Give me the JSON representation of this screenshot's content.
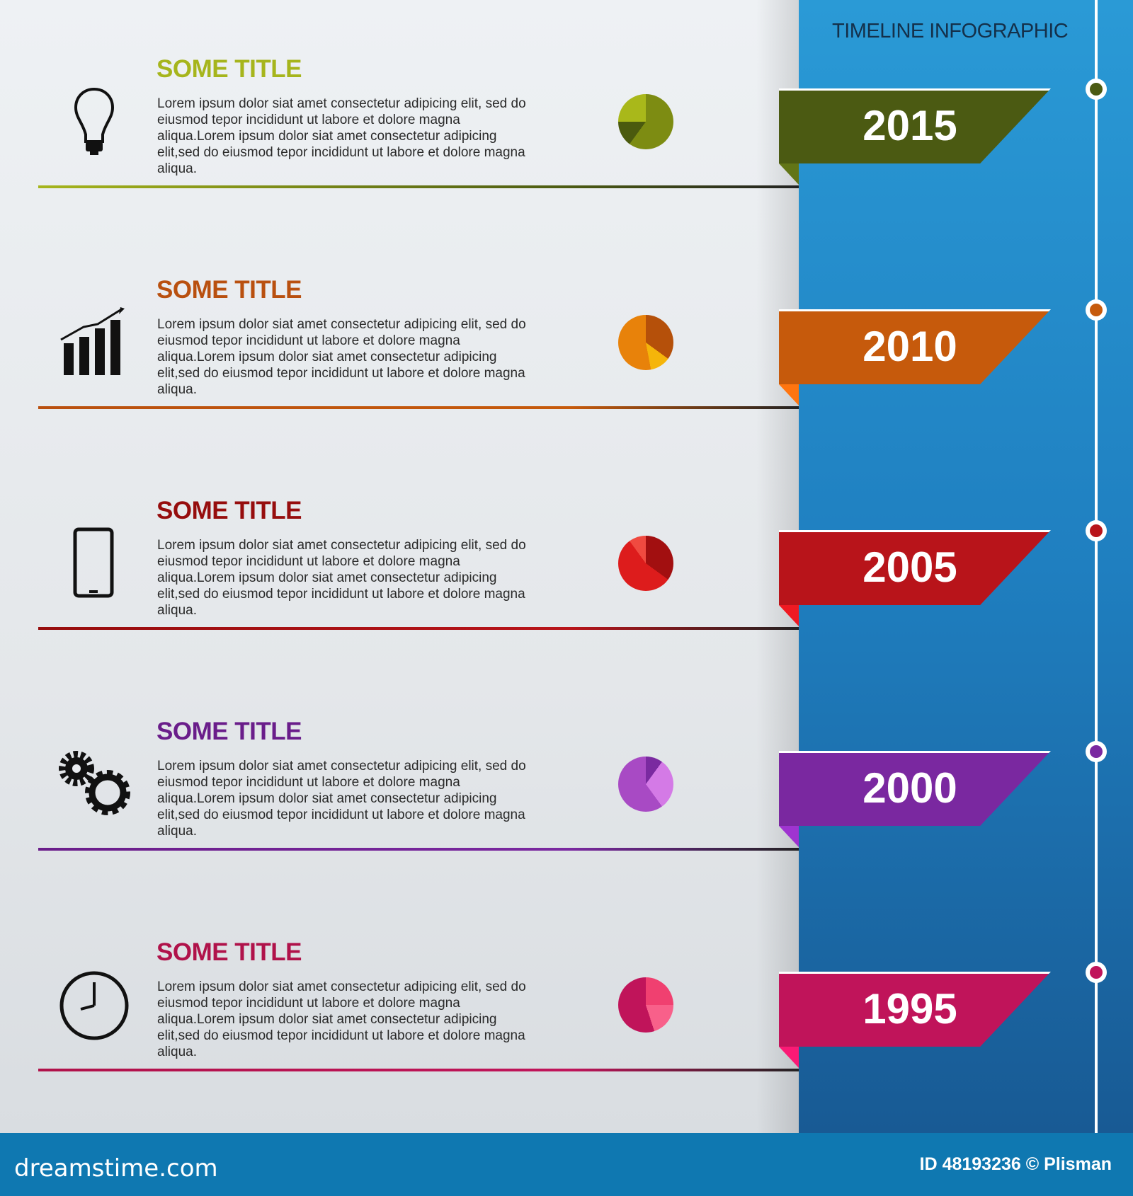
{
  "header": {
    "title": "TIMELINE INFOGRAPHIC"
  },
  "items": [
    {
      "year": "2015",
      "title": "SOME TITLE",
      "text": "Lorem ipsum dolor siat amet consectetur adipicing elit, sed do eiusmod tepor incididunt ut labore et dolore magna aliqua.Lorem ipsum dolor siat amet consectetur adipicing elit,sed do eiusmod tepor incididunt ut labore et dolore magna aliqua.",
      "icon": "lightbulb-icon",
      "title_color": "#a6b51c",
      "ribbon_color": "#4b5a12",
      "pie": [
        [
          "#7d8c12",
          60
        ],
        [
          "#4b5a0e",
          15
        ],
        [
          "#a9b81a",
          25
        ]
      ]
    },
    {
      "year": "2010",
      "title": "SOME TITLE",
      "text": "Lorem ipsum dolor siat amet consectetur adipicing elit, sed do eiusmod tepor incididunt ut labore et dolore magna aliqua.Lorem ipsum dolor siat amet consectetur adipicing elit,sed do eiusmod tepor incididunt ut labore et dolore magna aliqua.",
      "icon": "growth-chart-icon",
      "title_color": "#b9500f",
      "ribbon_color": "#c65a0c",
      "pie": [
        [
          "#b5500a",
          35
        ],
        [
          "#f5b50a",
          12
        ],
        [
          "#e8820a",
          53
        ]
      ]
    },
    {
      "year": "2005",
      "title": "SOME TITLE",
      "text": "Lorem ipsum dolor siat amet consectetur adipicing elit, sed do eiusmod tepor incididunt ut labore et dolore magna aliqua.Lorem ipsum dolor siat amet consectetur adipicing elit,sed do eiusmod tepor incididunt ut labore et dolore magna aliqua.",
      "icon": "smartphone-icon",
      "title_color": "#960d0d",
      "ribbon_color": "#b8141a",
      "pie": [
        [
          "#a20f10",
          35
        ],
        [
          "#dd1c1c",
          55
        ],
        [
          "#f04a40",
          10
        ]
      ]
    },
    {
      "year": "2000",
      "title": "SOME TITLE",
      "text": "Lorem ipsum dolor siat amet consectetur adipicing elit, sed do eiusmod tepor incididunt ut labore et dolore magna aliqua.Lorem ipsum dolor siat amet consectetur adipicing elit,sed do eiusmod tepor incididunt ut labore et dolore magna aliqua.",
      "icon": "gears-icon",
      "title_color": "#6a1d8a",
      "ribbon_color": "#7a28a0",
      "pie": [
        [
          "#7a2aa0",
          10
        ],
        [
          "#d47ae6",
          30
        ],
        [
          "#a84ac4",
          60
        ]
      ]
    },
    {
      "year": "1995",
      "title": "SOME TITLE",
      "text": "Lorem ipsum dolor siat amet consectetur adipicing elit, sed do eiusmod tepor incididunt ut labore et dolore magna aliqua.Lorem ipsum dolor siat amet consectetur adipicing elit,sed do eiusmod tepor incididunt ut labore et dolore magna aliqua.",
      "icon": "clock-icon",
      "title_color": "#b0124a",
      "ribbon_color": "#c0145a",
      "pie": [
        [
          "#f04070",
          25
        ],
        [
          "#f8608a",
          20
        ],
        [
          "#c0145a",
          55
        ]
      ]
    }
  ],
  "footer": {
    "brand": "dreamstime.com",
    "credit": "ID 48193236 © Plisman"
  }
}
